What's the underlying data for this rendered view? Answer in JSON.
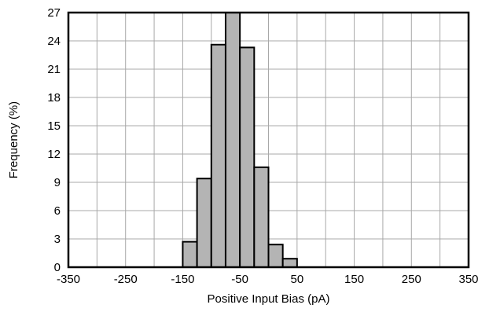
{
  "chart_data": {
    "type": "bar",
    "title": "",
    "xlabel": "Positive Input Bias (pA)",
    "ylabel": "Frequency (%)",
    "xlim": [
      -350,
      350
    ],
    "ylim": [
      0,
      27
    ],
    "x_ticks": [
      -350,
      -250,
      -150,
      -50,
      50,
      150,
      250,
      350
    ],
    "x_tick_labels": [
      "-350",
      "-250",
      "-150",
      "-50",
      "50",
      "150",
      "250",
      "350"
    ],
    "y_ticks": [
      0,
      3,
      6,
      9,
      12,
      15,
      18,
      21,
      24,
      27
    ],
    "y_tick_labels": [
      "0",
      "3",
      "6",
      "9",
      "12",
      "15",
      "18",
      "21",
      "24",
      "27"
    ],
    "grid": true,
    "bin_width": 25,
    "bars": [
      {
        "x_start": -150,
        "x_end": -125,
        "value": 2.7
      },
      {
        "x_start": -125,
        "x_end": -100,
        "value": 9.4
      },
      {
        "x_start": -100,
        "x_end": -75,
        "value": 23.6
      },
      {
        "x_start": -75,
        "x_end": -50,
        "value": 27.0
      },
      {
        "x_start": -50,
        "x_end": -25,
        "value": 23.3
      },
      {
        "x_start": -25,
        "x_end": 0,
        "value": 10.6
      },
      {
        "x_start": 0,
        "x_end": 25,
        "value": 2.4
      },
      {
        "x_start": 25,
        "x_end": 50,
        "value": 0.9
      }
    ],
    "colors": {
      "bar_fill": "#b4b4b4",
      "bar_stroke": "#000000",
      "grid": "#a8a8a8"
    }
  }
}
